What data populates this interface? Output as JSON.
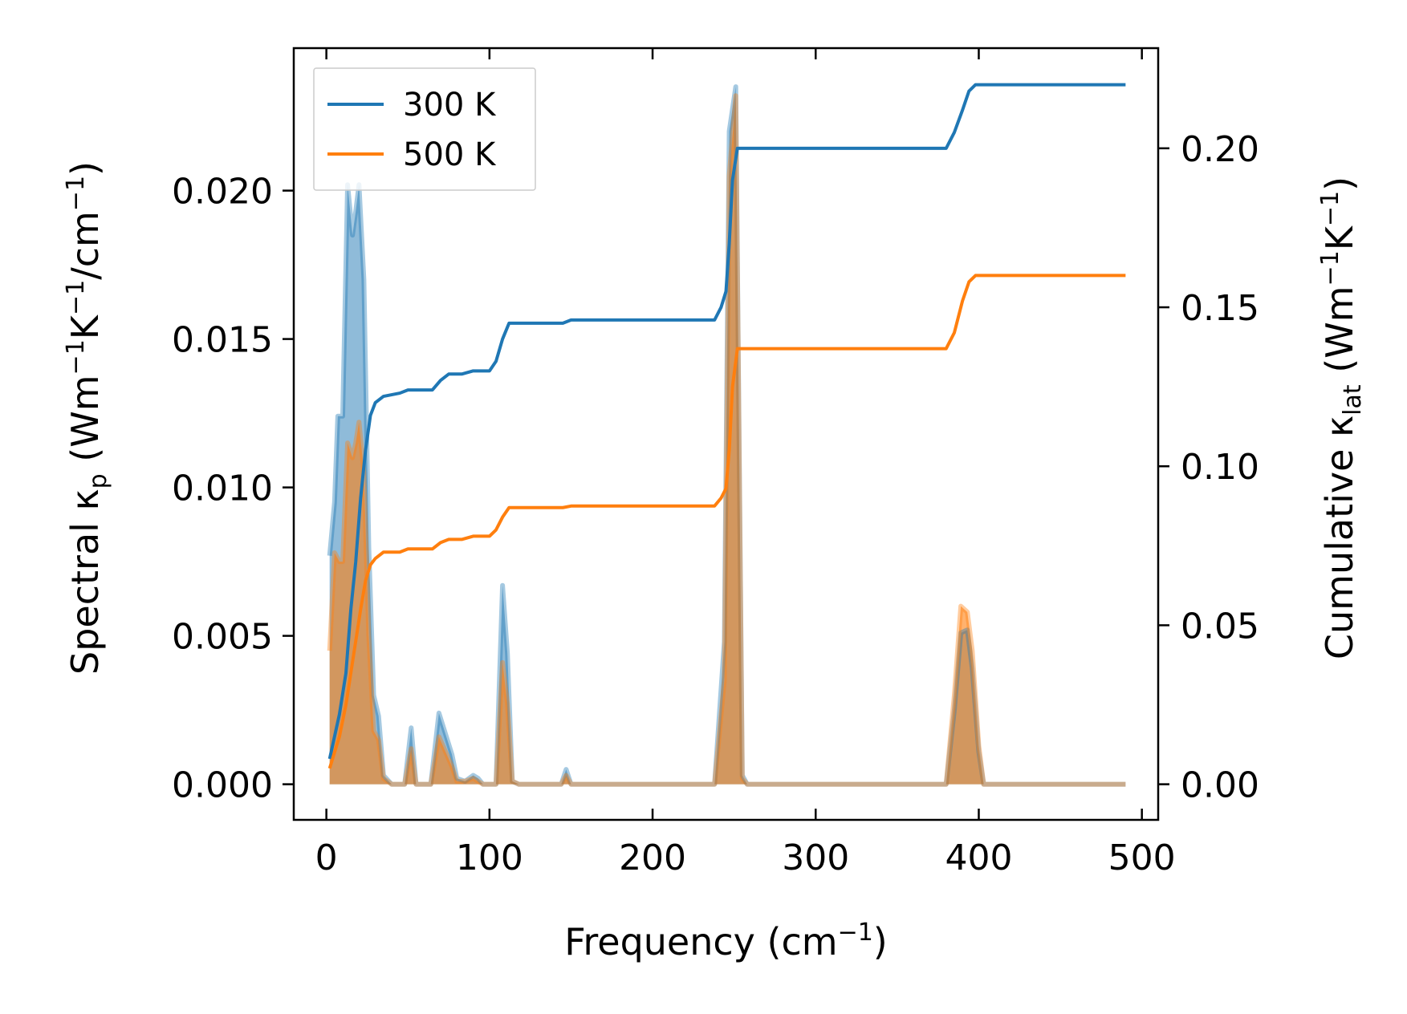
{
  "chart_data": {
    "type": "line",
    "xlabel": {
      "base": "Frequency (cm",
      "sup": "−1",
      "tail": ")"
    },
    "ylabel_left": {
      "pre": "Spectral κ",
      "sub": "p",
      "mid1": " (Wm",
      "sup1": "−1",
      "mid2": "K",
      "sup2": "−1",
      "mid3": "/cm",
      "sup3": "−1",
      "tail": ")"
    },
    "ylabel_right": {
      "pre": "Cumulative κ",
      "sub": "lat",
      "mid1": " (Wm",
      "sup1": "−1",
      "mid2": "K",
      "sup2": "−1",
      "tail": ")"
    },
    "xlim": [
      -20,
      510
    ],
    "ylim_left": [
      -0.0012,
      0.0248
    ],
    "ylim_right": [
      -0.0112,
      0.2315
    ],
    "xticks": [
      0,
      100,
      200,
      300,
      400,
      500
    ],
    "xtick_labels": [
      "0",
      "100",
      "200",
      "300",
      "400",
      "500"
    ],
    "yticks_left": [
      0,
      0.005,
      0.01,
      0.015,
      0.02
    ],
    "ytick_labels_left": [
      "0.000",
      "0.005",
      "0.010",
      "0.015",
      "0.020"
    ],
    "yticks_right": [
      0,
      0.05,
      0.1,
      0.15,
      0.2
    ],
    "ytick_labels_right": [
      "0.00",
      "0.05",
      "0.10",
      "0.15",
      "0.20"
    ],
    "legend": {
      "placement": "top-left",
      "entries": [
        "300 K",
        "500 K"
      ]
    },
    "series": [
      {
        "name": "300 K",
        "color": "#1f77b4",
        "spectral": [
          [
            2,
            0.0077
          ],
          [
            5,
            0.0095
          ],
          [
            7,
            0.0124
          ],
          [
            10,
            0.0124
          ],
          [
            13,
            0.0202
          ],
          [
            16,
            0.0185
          ],
          [
            18,
            0.0193
          ],
          [
            20,
            0.0202
          ],
          [
            23,
            0.017
          ],
          [
            26,
            0.008
          ],
          [
            29,
            0.003
          ],
          [
            32,
            0.0023
          ],
          [
            35,
            0.0003
          ],
          [
            40,
            0
          ],
          [
            48,
            0
          ],
          [
            52,
            0.0019
          ],
          [
            55,
            0
          ],
          [
            64,
            0
          ],
          [
            69,
            0.0024
          ],
          [
            73,
            0.0017
          ],
          [
            77,
            0.001
          ],
          [
            80,
            0.0002
          ],
          [
            85,
            0.0001
          ],
          [
            90,
            0.0003
          ],
          [
            93,
            0.0002
          ],
          [
            96,
            0
          ],
          [
            104,
            0
          ],
          [
            108,
            0.0067
          ],
          [
            111,
            0.0044
          ],
          [
            114,
            0.0001
          ],
          [
            118,
            0
          ],
          [
            144,
            0
          ],
          [
            147,
            0.0005
          ],
          [
            150,
            0
          ],
          [
            238,
            0
          ],
          [
            244,
            0.0048
          ],
          [
            247,
            0.022
          ],
          [
            251,
            0.0235
          ],
          [
            255,
            0.0003
          ],
          [
            258,
            0
          ],
          [
            380,
            0
          ],
          [
            385,
            0.0025
          ],
          [
            389,
            0.0051
          ],
          [
            393,
            0.0052
          ],
          [
            396,
            0.0039
          ],
          [
            400,
            0.0011
          ],
          [
            403,
            0
          ],
          [
            490,
            0
          ]
        ],
        "cumulative": [
          [
            2,
            0.008
          ],
          [
            5,
            0.015
          ],
          [
            8,
            0.022
          ],
          [
            12,
            0.035
          ],
          [
            15,
            0.055
          ],
          [
            18,
            0.07
          ],
          [
            21,
            0.09
          ],
          [
            24,
            0.105
          ],
          [
            27,
            0.116
          ],
          [
            30,
            0.12
          ],
          [
            35,
            0.122
          ],
          [
            45,
            0.123
          ],
          [
            50,
            0.124
          ],
          [
            55,
            0.124
          ],
          [
            65,
            0.124
          ],
          [
            70,
            0.127
          ],
          [
            75,
            0.129
          ],
          [
            83,
            0.129
          ],
          [
            90,
            0.13
          ],
          [
            100,
            0.13
          ],
          [
            104,
            0.133
          ],
          [
            108,
            0.14
          ],
          [
            112,
            0.145
          ],
          [
            117,
            0.145
          ],
          [
            145,
            0.145
          ],
          [
            150,
            0.146
          ],
          [
            238,
            0.146
          ],
          [
            242,
            0.15
          ],
          [
            245,
            0.155
          ],
          [
            247,
            0.17
          ],
          [
            249,
            0.19
          ],
          [
            252,
            0.2
          ],
          [
            255,
            0.2
          ],
          [
            380,
            0.2
          ],
          [
            385,
            0.205
          ],
          [
            390,
            0.212
          ],
          [
            394,
            0.218
          ],
          [
            398,
            0.22
          ],
          [
            490,
            0.22
          ]
        ]
      },
      {
        "name": "500 K",
        "color": "#ff7f0e",
        "spectral": [
          [
            2,
            0.0045
          ],
          [
            5,
            0.0078
          ],
          [
            8,
            0.0075
          ],
          [
            10,
            0.0075
          ],
          [
            13,
            0.0115
          ],
          [
            16,
            0.011
          ],
          [
            18,
            0.0115
          ],
          [
            20,
            0.0122
          ],
          [
            23,
            0.0105
          ],
          [
            26,
            0.005
          ],
          [
            29,
            0.0018
          ],
          [
            32,
            0.0015
          ],
          [
            35,
            0.0002
          ],
          [
            40,
            0
          ],
          [
            48,
            0
          ],
          [
            52,
            0.0012
          ],
          [
            55,
            0
          ],
          [
            64,
            0
          ],
          [
            69,
            0.0016
          ],
          [
            73,
            0.0011
          ],
          [
            77,
            0.0006
          ],
          [
            80,
            0.0001
          ],
          [
            85,
            0.0001
          ],
          [
            90,
            0.0002
          ],
          [
            93,
            0.0001
          ],
          [
            96,
            0
          ],
          [
            104,
            0
          ],
          [
            108,
            0.0041
          ],
          [
            111,
            0.0027
          ],
          [
            114,
            0.0001
          ],
          [
            118,
            0
          ],
          [
            144,
            0
          ],
          [
            147,
            0.0003
          ],
          [
            150,
            0
          ],
          [
            238,
            0
          ],
          [
            244,
            0.0035
          ],
          [
            247,
            0.0205
          ],
          [
            251,
            0.0232
          ],
          [
            255,
            0.0002
          ],
          [
            258,
            0
          ],
          [
            380,
            0
          ],
          [
            385,
            0.003
          ],
          [
            389,
            0.006
          ],
          [
            393,
            0.0058
          ],
          [
            396,
            0.0045
          ],
          [
            400,
            0.0013
          ],
          [
            403,
            0
          ],
          [
            490,
            0
          ]
        ],
        "cumulative": [
          [
            2,
            0.005
          ],
          [
            5,
            0.01
          ],
          [
            8,
            0.015
          ],
          [
            12,
            0.025
          ],
          [
            15,
            0.035
          ],
          [
            18,
            0.045
          ],
          [
            21,
            0.055
          ],
          [
            24,
            0.064
          ],
          [
            27,
            0.069
          ],
          [
            30,
            0.071
          ],
          [
            35,
            0.073
          ],
          [
            45,
            0.073
          ],
          [
            50,
            0.074
          ],
          [
            55,
            0.074
          ],
          [
            65,
            0.074
          ],
          [
            70,
            0.076
          ],
          [
            75,
            0.077
          ],
          [
            83,
            0.077
          ],
          [
            90,
            0.078
          ],
          [
            100,
            0.078
          ],
          [
            104,
            0.08
          ],
          [
            108,
            0.084
          ],
          [
            112,
            0.087
          ],
          [
            117,
            0.087
          ],
          [
            145,
            0.087
          ],
          [
            150,
            0.0875
          ],
          [
            238,
            0.0875
          ],
          [
            242,
            0.09
          ],
          [
            245,
            0.093
          ],
          [
            247,
            0.105
          ],
          [
            249,
            0.125
          ],
          [
            252,
            0.137
          ],
          [
            255,
            0.137
          ],
          [
            380,
            0.137
          ],
          [
            385,
            0.142
          ],
          [
            390,
            0.152
          ],
          [
            394,
            0.158
          ],
          [
            398,
            0.16
          ],
          [
            490,
            0.16
          ]
        ]
      }
    ]
  }
}
